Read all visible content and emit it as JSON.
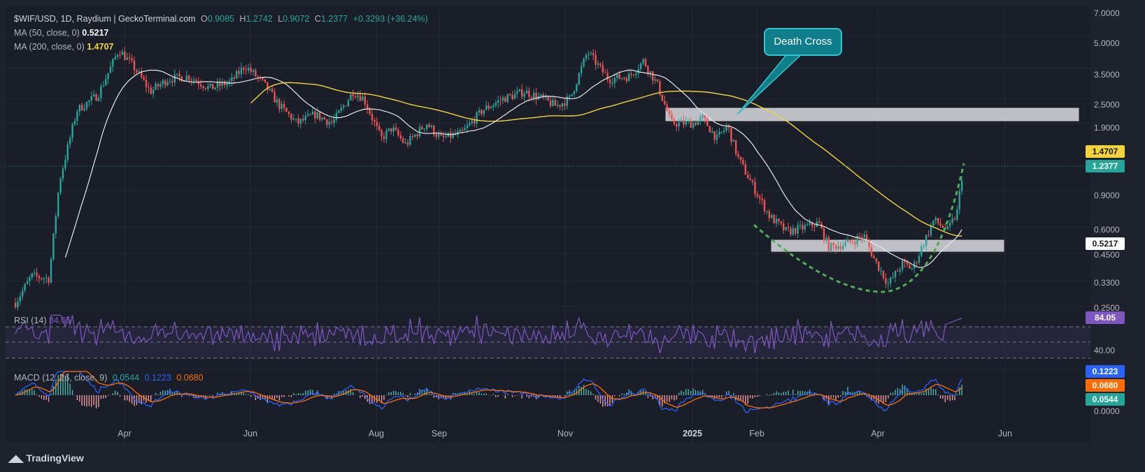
{
  "header": {
    "symbol_line": "$WIF/USD, 1D, Raydium | GeckoTerminal.com",
    "open_label": "O",
    "open": "0.9085",
    "high_label": "H",
    "high": "1.2742",
    "low_label": "L",
    "low": "0.9072",
    "close_label": "C",
    "close": "1.2377",
    "change": "+0.3293 (+36.24%)"
  },
  "indicators": {
    "ma50_label": "MA (50, close, 0)",
    "ma50_value": "0.5217",
    "ma200_label": "MA (200, close, 0)",
    "ma200_value": "1.4707",
    "rsi_label": "RSI (14)",
    "rsi_value": "84.05",
    "macd_label": "MACD (12, 26, close, 9)",
    "macd_value": "0.0544",
    "signal_value": "0.1223",
    "hist_value": "0.0680"
  },
  "annotation": {
    "death_cross": "Death Cross"
  },
  "price_axis": [
    "7.0000",
    "5.0000",
    "3.5000",
    "2.5000",
    "1.9000",
    "0.9000",
    "0.6000",
    "0.4500",
    "0.3300",
    "0.2500"
  ],
  "price_badges": {
    "ma200": "1.4707",
    "last": "1.2377",
    "ma50": "0.5217"
  },
  "rsi_axis": {
    "tick": "40.00",
    "badge": "84.05"
  },
  "macd_axis": {
    "signal": "0.1223",
    "hist": "0.0680",
    "macd": "0.0544",
    "zero": "0.0000"
  },
  "time_axis": [
    "Apr",
    "Jun",
    "Aug",
    "Sep",
    "Nov",
    "2025",
    "Feb",
    "Apr",
    "Jun"
  ],
  "brand": "TradingView",
  "colors": {
    "background": "#1e222d",
    "up": "#26a69a",
    "down": "#ef5350",
    "ma50": "#ffffff",
    "ma200": "#f5d33a",
    "rsi": "#7e57c2",
    "macd": "#2962ff",
    "signal": "#ff6d00",
    "cup": "#4caf50",
    "callout": "#0e7f8a"
  },
  "chart_data": {
    "type": "candlestick",
    "title": "$WIF/USD, 1D, Raydium | GeckoTerminal.com",
    "y_scale": "log",
    "ylim": [
      0.24,
      7.0
    ],
    "x_ticks": [
      "Apr",
      "Jun",
      "Aug",
      "Sep",
      "Nov",
      "2025",
      "Feb",
      "Apr",
      "Jun"
    ],
    "approx_close_path": [
      {
        "date": "Mar",
        "price": 0.28
      },
      {
        "date": "Apr",
        "price": 4.1
      },
      {
        "date": "May",
        "price": 3.0
      },
      {
        "date": "Jun",
        "price": 3.4
      },
      {
        "date": "Jul",
        "price": 1.9
      },
      {
        "date": "Aug",
        "price": 2.3
      },
      {
        "date": "Aug-late",
        "price": 1.5
      },
      {
        "date": "Oct",
        "price": 2.6
      },
      {
        "date": "Nov",
        "price": 4.2
      },
      {
        "date": "Dec",
        "price": 2.9
      },
      {
        "date": "2025",
        "price": 1.8
      },
      {
        "date": "Feb",
        "price": 0.65
      },
      {
        "date": "Mar",
        "price": 0.5
      },
      {
        "date": "Apr",
        "price": 0.32
      },
      {
        "date": "May",
        "price": 0.55
      },
      {
        "date": "May-late",
        "price": 1.2377
      }
    ],
    "ma50_last": 0.5217,
    "ma200_last": 1.4707,
    "rsi_last": 84.05,
    "macd_last": {
      "macd": 0.0544,
      "signal": 0.1223,
      "hist": 0.068
    }
  }
}
